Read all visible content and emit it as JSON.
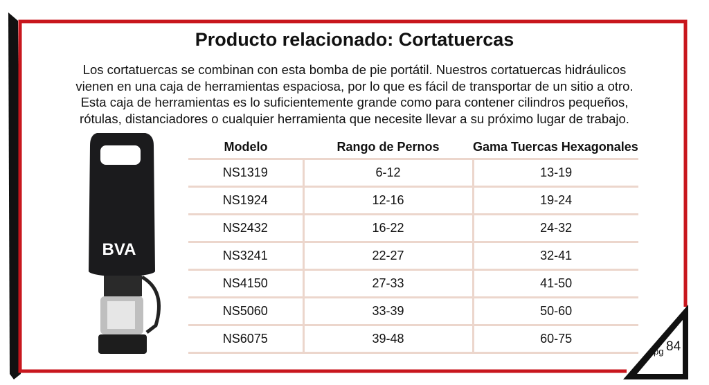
{
  "header": {
    "title": "Producto relacionado: Cortatuercas"
  },
  "paragraph": [
    "Los cortatuercas se combinan con esta bomba de pie portátil. Nuestros cortatuercas hidráulicos",
    "vienen en una caja de herramientas espaciosa, por lo que es fácil de transportar de un sitio a otro.",
    "Esta caja de herramientas es  lo suficientemente grande como para contener cilindros pequeños,",
    "rótulas, distanciadores o cualquier herramienta que necesite llevar a su próximo lugar de trabajo."
  ],
  "image": {
    "brand": "BVA"
  },
  "table": {
    "columns": [
      "Modelo",
      "Rango de Pernos",
      "Gama Tuercas Hexagonales"
    ],
    "rows": [
      [
        "NS1319",
        "6-12",
        "13-19"
      ],
      [
        "NS1924",
        "12-16",
        "19-24"
      ],
      [
        "NS2432",
        "16-22",
        "24-32"
      ],
      [
        "NS3241",
        "22-27",
        "32-41"
      ],
      [
        "NS4150",
        "27-33",
        "41-50"
      ],
      [
        "NS5060",
        "33-39",
        "50-60"
      ],
      [
        "NS6075",
        "39-48",
        "60-75"
      ]
    ]
  },
  "footer": {
    "prefix": "pg",
    "page": "84"
  }
}
